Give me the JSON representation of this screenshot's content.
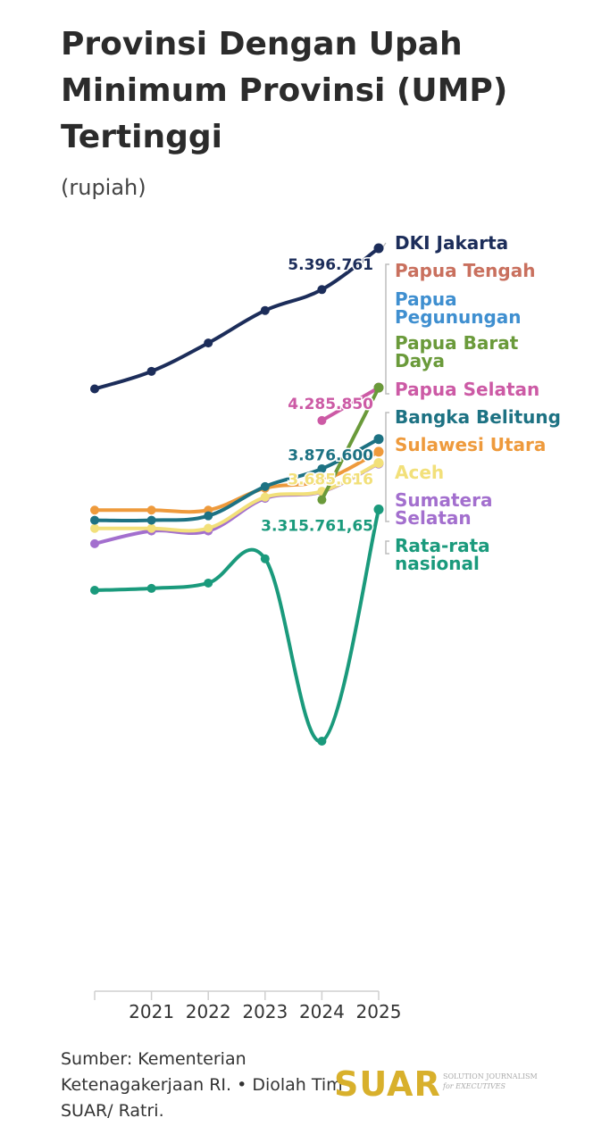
{
  "title": "Provinsi Dengan Upah Minimum Provinsi (UMP) Tertinggi",
  "subtitle": "(rupiah)",
  "source": "Sumber: Kementerian Ketenagakerjaan RI. • Diolah Tim SUAR/ Ratri.",
  "brand": {
    "name": "SUAR",
    "tagline_1": "SOLUTION JOURNALISM",
    "tagline_2": "for EXECUTIVES",
    "color": "#d8b02c"
  },
  "chart_data": {
    "type": "line",
    "title": "Provinsi Dengan Upah Minimum Provinsi (UMP) Tertinggi",
    "ylabel": "(rupiah)",
    "x": [
      "2020",
      "2021",
      "2022",
      "2023",
      "2024",
      "2025"
    ],
    "x_tick_labels": [
      "",
      "2021",
      "2022",
      "2023",
      "2024",
      "2025"
    ],
    "ylim": [
      1000000,
      5500000
    ],
    "legend_placement": "right",
    "grid": false,
    "series": [
      {
        "name": "DKI Jakarta",
        "color": "#1c2d5a",
        "values": [
          4276349,
          4416186,
          4641854,
          4900798,
          5067381,
          5396761
        ]
      },
      {
        "name": "Papua Tengah",
        "color": "#c9705e",
        "values": [
          null,
          null,
          null,
          null,
          null,
          4285850
        ]
      },
      {
        "name": "Papua Pegunungan",
        "color": "#3f8fd0",
        "values": [
          null,
          null,
          null,
          null,
          null,
          4285850
        ]
      },
      {
        "name": "Papua Barat Daya",
        "color": "#6a9a3a",
        "values": [
          null,
          null,
          null,
          null,
          3393000,
          4285850
        ]
      },
      {
        "name": "Papua Selatan",
        "color": "#cc5aa5",
        "values": [
          null,
          null,
          null,
          null,
          4024270,
          4285850
        ]
      },
      {
        "name": "Bangka Belitung",
        "color": "#1d7283",
        "values": [
          3230023,
          3230023,
          3264884,
          3498479,
          3640000,
          3876600
        ]
      },
      {
        "name": "Sulawesi Utara",
        "color": "#ee9a3c",
        "values": [
          3310723,
          3310723,
          3310723,
          3485000,
          3545000,
          3775425
        ]
      },
      {
        "name": "Aceh",
        "color": "#f2e07a",
        "values": [
          3165031,
          3165031,
          3166460,
          3413666,
          3460672,
          3685616
        ]
      },
      {
        "name": "Sumatera Selatan",
        "color": "#a36fce",
        "values": [
          3043111,
          3144446,
          3144446,
          3404177,
          3456874,
          3681570
        ]
      },
      {
        "name": "Rata-rata nasional",
        "color": "#1a9a7c",
        "values": [
          2672371,
          2687000,
          2729463,
          2923324,
          1470000,
          3315761.65
        ]
      }
    ],
    "value_labels": [
      {
        "series": "DKI Jakarta",
        "x": "2025",
        "text": "5.396.761"
      },
      {
        "series": "Papua Selatan",
        "x": "2025",
        "text": "4.285.850"
      },
      {
        "series": "Bangka Belitung",
        "x": "2025",
        "text": "3.876.600"
      },
      {
        "series": "Aceh",
        "x": "2025",
        "text": "3.685.616"
      },
      {
        "series": "Rata-rata nasional",
        "x": "2025",
        "text": "3.315.761,65"
      }
    ]
  }
}
